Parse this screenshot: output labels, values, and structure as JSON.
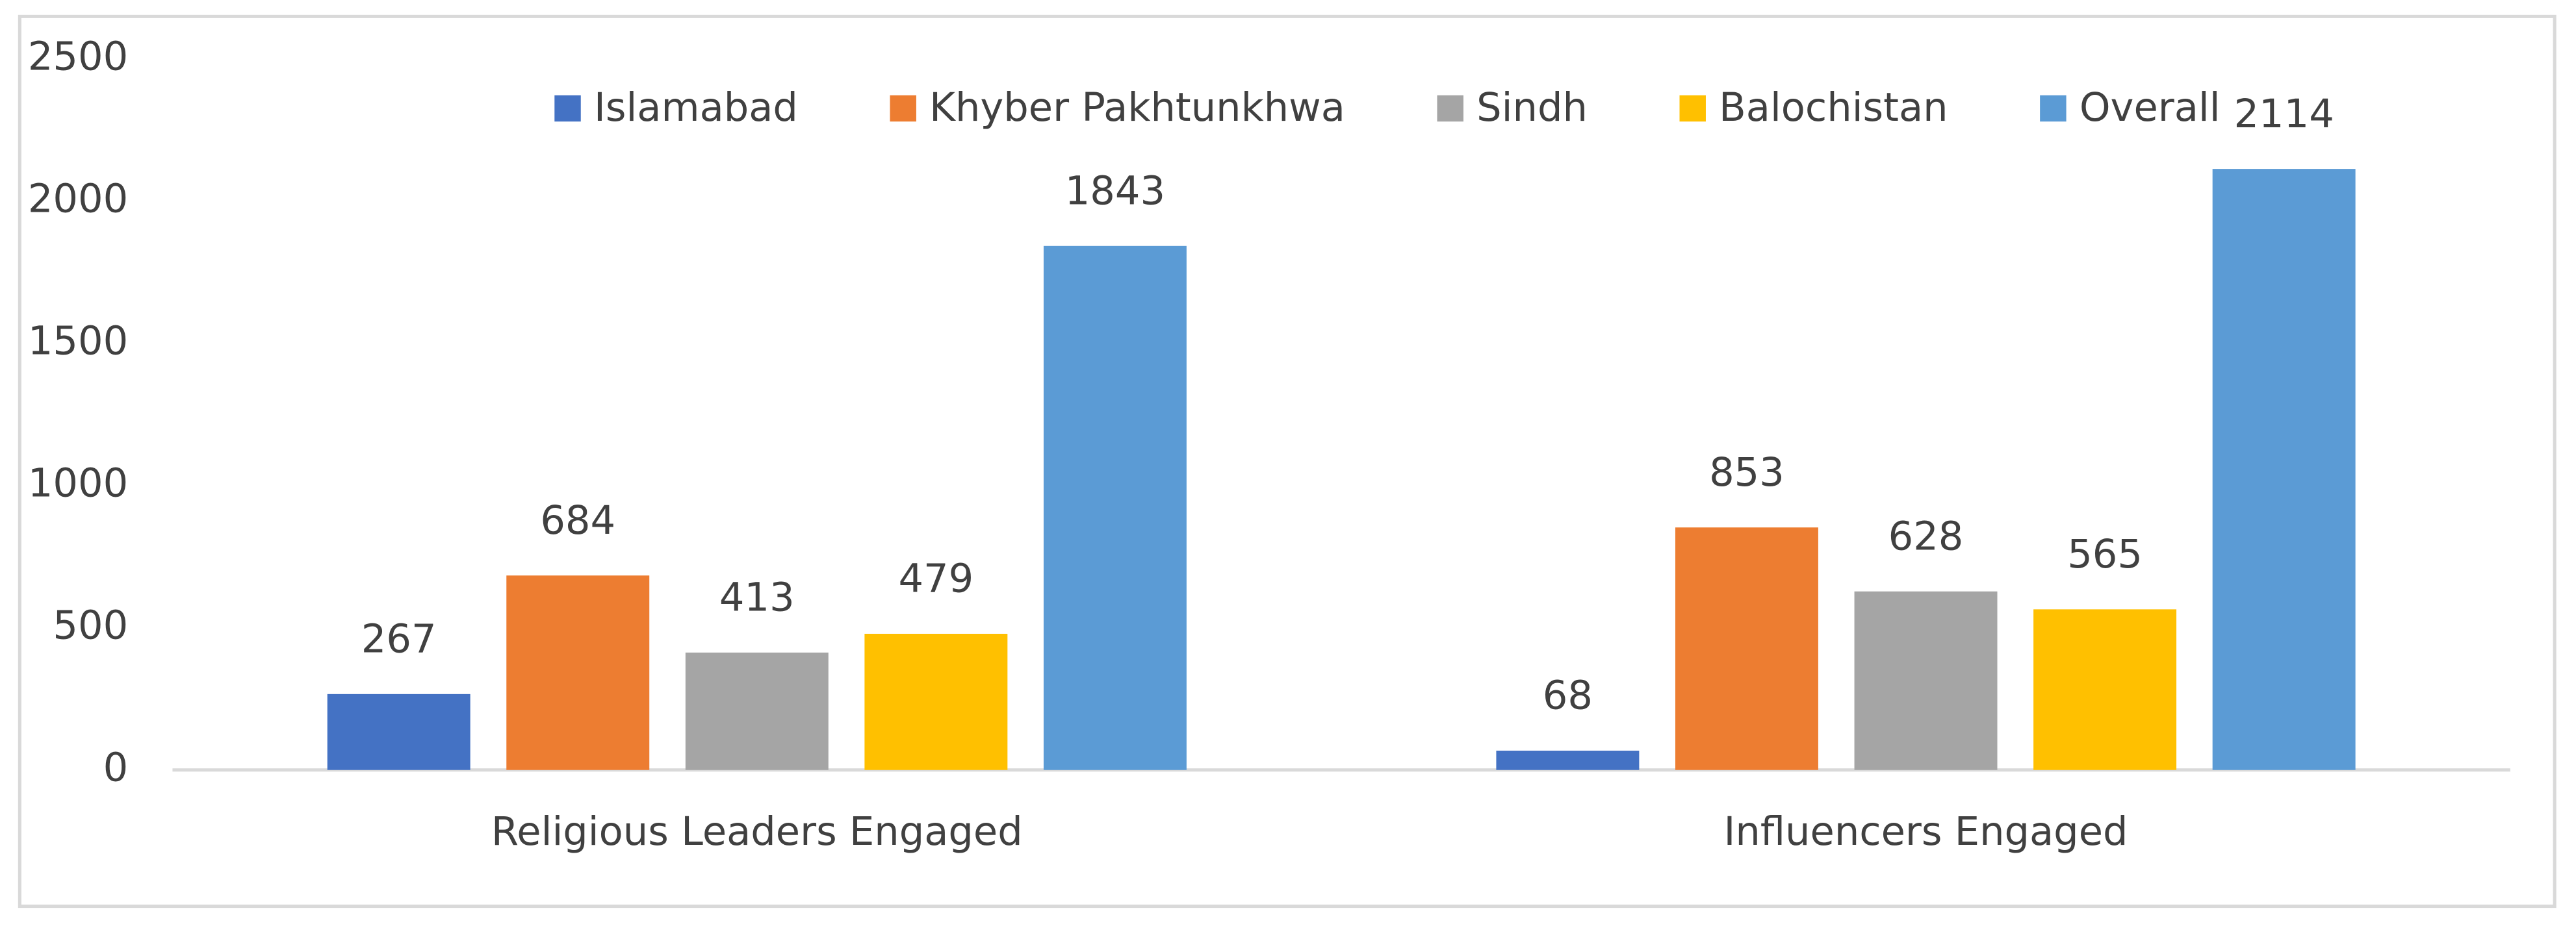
{
  "chart_data": {
    "type": "bar",
    "categories": [
      "Religious Leaders Engaged",
      "Influencers Engaged"
    ],
    "series": [
      {
        "name": "Islamabad",
        "color": "#4472c4",
        "values": [
          267,
          68
        ]
      },
      {
        "name": "Khyber Pakhtunkhwa",
        "color": "#ed7d31",
        "values": [
          684,
          853
        ]
      },
      {
        "name": "Sindh",
        "color": "#a5a5a5",
        "values": [
          413,
          628
        ]
      },
      {
        "name": "Balochistan",
        "color": "#ffc000",
        "values": [
          479,
          565
        ]
      },
      {
        "name": "Overall",
        "color": "#5b9bd5",
        "values": [
          1843,
          2114
        ]
      }
    ],
    "ylim": [
      0,
      2500
    ],
    "yticks": [
      0,
      500,
      1000,
      1500,
      2000,
      2500
    ],
    "grid": false,
    "data_labels": true,
    "legend": "top"
  }
}
